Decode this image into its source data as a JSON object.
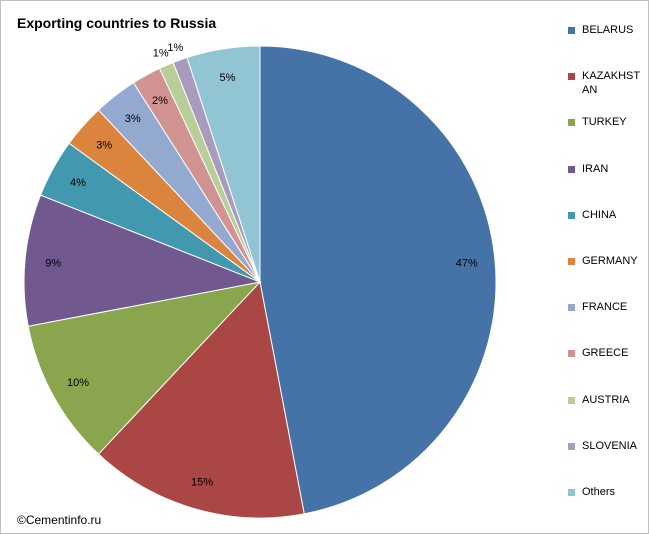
{
  "title": "Exporting countries to Russia",
  "source_note": "©Cementinfo.ru",
  "chart_data": {
    "type": "pie",
    "title": "Exporting countries to Russia",
    "categories": [
      "BELARUS",
      "KAZAKHSTAN",
      "TURKEY",
      "IRAN",
      "CHINA",
      "GERMANY",
      "FRANCE",
      "GREECE",
      "AUSTRIA",
      "SLOVENIA",
      "Others"
    ],
    "values": [
      47,
      15,
      10,
      9,
      4,
      3,
      3,
      2,
      1,
      1,
      5
    ],
    "data_labels": [
      "47%",
      "15%",
      "10%",
      "9%",
      "4%",
      "3%",
      "3%",
      "2%",
      "1%",
      "1%",
      "5%"
    ],
    "colors": [
      "#4572A7",
      "#AA4643",
      "#89A54E",
      "#71588F",
      "#4198AF",
      "#DB843D",
      "#93A9CF",
      "#D19392",
      "#B9CD96",
      "#A99BBD",
      "#92C5D4"
    ],
    "legend_position": "right",
    "start_angle": "12 o'clock",
    "direction": "clockwise"
  }
}
